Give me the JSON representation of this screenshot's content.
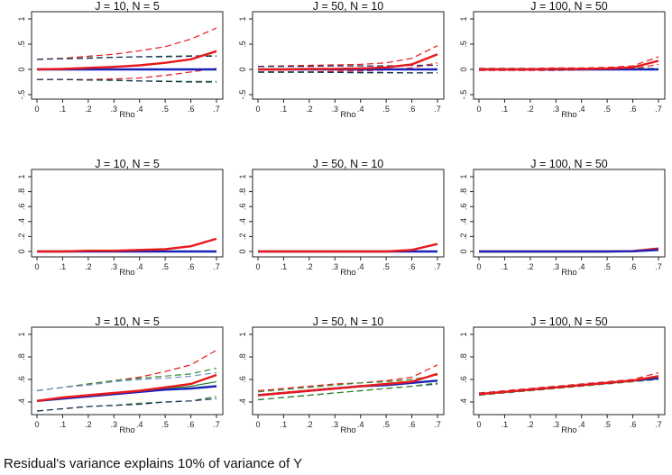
{
  "caption": "Residual's variance explains 10% of variance of Y",
  "colors": {
    "red": "#e8191b",
    "blue": "#1a23b8",
    "green": "#2e8b2e",
    "navy": "#1c2a5a",
    "lightblue": "#6f8fc8",
    "frame": "#222222"
  },
  "chart_data": {
    "type": "line",
    "x": [
      0,
      0.1,
      0.2,
      0.3,
      0.4,
      0.5,
      0.6,
      0.7
    ],
    "xticks": [
      "0",
      ".1",
      ".2",
      ".3",
      ".4",
      ".5",
      ".6",
      ".7"
    ],
    "xlabel": "Rho",
    "rows": [
      {
        "ylim": [
          -0.6,
          1.1
        ],
        "yticks": [
          {
            "v": 1,
            "t": "1"
          },
          {
            "v": 0.5,
            "t": ".5"
          },
          {
            "v": 0,
            "t": "0"
          },
          {
            "v": -0.5,
            "t": "-.5"
          }
        ]
      },
      {
        "ylim": [
          -0.05,
          1.05
        ],
        "yticks": [
          {
            "v": 1,
            "t": "1"
          },
          {
            "v": 0.8,
            "t": ".8"
          },
          {
            "v": 0.6,
            "t": ".6"
          },
          {
            "v": 0.4,
            "t": ".4"
          },
          {
            "v": 0.2,
            "t": ".2"
          },
          {
            "v": 0,
            "t": "0"
          }
        ]
      },
      {
        "ylim": [
          0.28,
          1.05
        ],
        "yticks": [
          {
            "v": 1,
            "t": "1"
          },
          {
            "v": 0.8,
            "t": ".8"
          },
          {
            "v": 0.6,
            "t": ".6"
          },
          {
            "v": 0.4,
            "t": ".4"
          }
        ]
      }
    ],
    "panels": [
      {
        "title": "J = 10, N = 5",
        "row": 0,
        "col": 0,
        "series": [
          {
            "name": "red-upper",
            "color": "red",
            "dash": true,
            "values": [
              0.2,
              0.22,
              0.26,
              0.3,
              0.37,
              0.45,
              0.6,
              0.82
            ]
          },
          {
            "name": "red-lower",
            "color": "red",
            "dash": true,
            "values": [
              -0.2,
              -0.2,
              -0.2,
              -0.19,
              -0.17,
              -0.12,
              -0.05,
              0.02
            ]
          },
          {
            "name": "green-upper",
            "color": "green",
            "dash": true,
            "values": [
              0.2,
              0.21,
              0.23,
              0.24,
              0.25,
              0.26,
              0.27,
              0.27
            ]
          },
          {
            "name": "navy-upper",
            "color": "navy",
            "dash": true,
            "values": [
              0.2,
              0.21,
              0.22,
              0.24,
              0.25,
              0.25,
              0.26,
              0.26
            ]
          },
          {
            "name": "green-lower",
            "color": "green",
            "dash": true,
            "values": [
              -0.2,
              -0.2,
              -0.21,
              -0.22,
              -0.23,
              -0.23,
              -0.24,
              -0.24
            ]
          },
          {
            "name": "navy-lower",
            "color": "navy",
            "dash": true,
            "values": [
              -0.2,
              -0.2,
              -0.21,
              -0.21,
              -0.23,
              -0.24,
              -0.25,
              -0.25
            ]
          },
          {
            "name": "blue-mean",
            "color": "blue",
            "dash": false,
            "values": [
              0,
              0,
              0,
              0,
              0,
              0,
              0,
              0
            ]
          },
          {
            "name": "red-mean",
            "color": "red",
            "dash": false,
            "values": [
              0,
              0.01,
              0.03,
              0.05,
              0.08,
              0.13,
              0.2,
              0.36
            ]
          }
        ]
      },
      {
        "title": "J = 50, N = 10",
        "row": 0,
        "col": 1,
        "series": [
          {
            "name": "red-upper",
            "color": "red",
            "dash": true,
            "values": [
              0.06,
              0.07,
              0.08,
              0.09,
              0.1,
              0.13,
              0.22,
              0.47
            ]
          },
          {
            "name": "red-lower",
            "color": "red",
            "dash": true,
            "values": [
              -0.05,
              -0.05,
              -0.05,
              -0.04,
              -0.03,
              -0.01,
              0.03,
              0.13
            ]
          },
          {
            "name": "navy-upper",
            "color": "navy",
            "dash": true,
            "values": [
              0.06,
              0.06,
              0.06,
              0.07,
              0.07,
              0.07,
              0.08,
              0.08
            ]
          },
          {
            "name": "green-lower",
            "color": "green",
            "dash": true,
            "values": [
              -0.06,
              -0.06,
              -0.06,
              -0.06,
              -0.07,
              -0.07,
              -0.07,
              -0.07
            ]
          },
          {
            "name": "navy-lower",
            "color": "navy",
            "dash": true,
            "values": [
              -0.05,
              -0.05,
              -0.05,
              -0.06,
              -0.06,
              -0.06,
              -0.07,
              -0.07
            ]
          },
          {
            "name": "blue-mean",
            "color": "blue",
            "dash": false,
            "values": [
              0,
              0,
              0,
              0,
              0,
              0,
              0,
              0
            ]
          },
          {
            "name": "red-mean",
            "color": "red",
            "dash": false,
            "values": [
              0,
              0,
              0.01,
              0.01,
              0.02,
              0.04,
              0.1,
              0.3
            ]
          }
        ]
      },
      {
        "title": "J = 100, N = 50",
        "row": 0,
        "col": 2,
        "series": [
          {
            "name": "red-upper",
            "color": "red",
            "dash": true,
            "values": [
              0.02,
              0.02,
              0.02,
              0.03,
              0.03,
              0.04,
              0.07,
              0.25
            ]
          },
          {
            "name": "red-lower",
            "color": "red",
            "dash": true,
            "values": [
              -0.02,
              -0.02,
              -0.02,
              -0.02,
              -0.01,
              0,
              0.01,
              0.1
            ]
          },
          {
            "name": "green-mean",
            "color": "green",
            "dash": true,
            "values": [
              0.01,
              0.01,
              0.01,
              0.01,
              0.01,
              0.02,
              0.02,
              0.02
            ]
          },
          {
            "name": "blue-mean",
            "color": "blue",
            "dash": false,
            "values": [
              0,
              0,
              0,
              0,
              0,
              0,
              0,
              0
            ]
          },
          {
            "name": "red-mean",
            "color": "red",
            "dash": false,
            "values": [
              0,
              0,
              0,
              0.01,
              0.01,
              0.02,
              0.04,
              0.17
            ]
          }
        ]
      },
      {
        "title": "J = 10, N = 5",
        "row": 1,
        "col": 0,
        "series": [
          {
            "name": "blue-mean",
            "color": "blue",
            "dash": false,
            "values": [
              0,
              0,
              0,
              0,
              0,
              0,
              0,
              0
            ]
          },
          {
            "name": "red-mean",
            "color": "red",
            "dash": false,
            "values": [
              0,
              0,
              0.01,
              0.01,
              0.02,
              0.03,
              0.07,
              0.17
            ]
          }
        ]
      },
      {
        "title": "J = 50, N = 10",
        "row": 1,
        "col": 1,
        "series": [
          {
            "name": "blue-mean",
            "color": "blue",
            "dash": false,
            "values": [
              0,
              0,
              0,
              0,
              0,
              0,
              0,
              0
            ]
          },
          {
            "name": "red-mean",
            "color": "red",
            "dash": false,
            "values": [
              0,
              0,
              0,
              0,
              0,
              0,
              0.02,
              0.1
            ]
          }
        ]
      },
      {
        "title": "J = 100, N = 50",
        "row": 1,
        "col": 2,
        "series": [
          {
            "name": "red-mean",
            "color": "red",
            "dash": false,
            "values": [
              0,
              0,
              0,
              0,
              0,
              0,
              0.005,
              0.04
            ]
          },
          {
            "name": "blue-mean",
            "color": "blue",
            "dash": false,
            "values": [
              0,
              0,
              0,
              0,
              0,
              0,
              0.003,
              0.02
            ]
          }
        ]
      },
      {
        "title": "J = 10, N = 5",
        "row": 2,
        "col": 0,
        "series": [
          {
            "name": "red-upper",
            "color": "red",
            "dash": true,
            "values": [
              0.5,
              0.53,
              0.56,
              0.59,
              0.62,
              0.67,
              0.73,
              0.86
            ]
          },
          {
            "name": "green-upper",
            "color": "green",
            "dash": true,
            "values": [
              0.5,
              0.53,
              0.56,
              0.59,
              0.61,
              0.63,
              0.65,
              0.7
            ]
          },
          {
            "name": "blue-upper",
            "color": "lightblue",
            "dash": true,
            "values": [
              0.5,
              0.53,
              0.55,
              0.58,
              0.6,
              0.61,
              0.63,
              0.66
            ]
          },
          {
            "name": "green-lower",
            "color": "green",
            "dash": true,
            "values": [
              0.32,
              0.34,
              0.36,
              0.37,
              0.39,
              0.4,
              0.41,
              0.45
            ]
          },
          {
            "name": "navy-lower",
            "color": "navy",
            "dash": true,
            "values": [
              0.32,
              0.34,
              0.36,
              0.37,
              0.38,
              0.4,
              0.41,
              0.43
            ]
          },
          {
            "name": "green-mean",
            "color": "green",
            "dash": false,
            "values": [
              0.41,
              0.43,
              0.45,
              0.47,
              0.49,
              0.52,
              0.54,
              0.58
            ]
          },
          {
            "name": "blue-mean",
            "color": "blue",
            "dash": false,
            "values": [
              0.41,
              0.43,
              0.45,
              0.47,
              0.49,
              0.51,
              0.52,
              0.54
            ]
          },
          {
            "name": "red-mean",
            "color": "red",
            "dash": false,
            "values": [
              0.41,
              0.44,
              0.46,
              0.48,
              0.5,
              0.53,
              0.56,
              0.64
            ]
          }
        ]
      },
      {
        "title": "J = 50, N = 10",
        "row": 2,
        "col": 1,
        "series": [
          {
            "name": "red-upper",
            "color": "red",
            "dash": true,
            "values": [
              0.5,
              0.52,
              0.54,
              0.56,
              0.57,
              0.59,
              0.62,
              0.73
            ]
          },
          {
            "name": "green-upper",
            "color": "green",
            "dash": true,
            "values": [
              0.49,
              0.51,
              0.53,
              0.55,
              0.57,
              0.58,
              0.6,
              0.64
            ]
          },
          {
            "name": "navy-lower",
            "color": "navy",
            "dash": true,
            "values": [
              0.42,
              0.44,
              0.46,
              0.48,
              0.5,
              0.52,
              0.54,
              0.56
            ]
          },
          {
            "name": "green-lower",
            "color": "green",
            "dash": true,
            "values": [
              0.42,
              0.44,
              0.46,
              0.48,
              0.5,
              0.52,
              0.54,
              0.57
            ]
          },
          {
            "name": "blue-mean",
            "color": "blue",
            "dash": false,
            "values": [
              0.46,
              0.48,
              0.5,
              0.52,
              0.54,
              0.55,
              0.57,
              0.59
            ]
          },
          {
            "name": "red-mean",
            "color": "red",
            "dash": false,
            "values": [
              0.46,
              0.48,
              0.5,
              0.52,
              0.54,
              0.56,
              0.58,
              0.65
            ]
          }
        ]
      },
      {
        "title": "J = 100, N = 50",
        "row": 2,
        "col": 2,
        "series": [
          {
            "name": "red-upper",
            "color": "red",
            "dash": true,
            "values": [
              0.48,
              0.5,
              0.52,
              0.54,
              0.56,
              0.58,
              0.6,
              0.66
            ]
          },
          {
            "name": "green-lower",
            "color": "green",
            "dash": true,
            "values": [
              0.46,
              0.48,
              0.5,
              0.52,
              0.54,
              0.56,
              0.58,
              0.6
            ]
          },
          {
            "name": "blue-mean",
            "color": "blue",
            "dash": false,
            "values": [
              0.47,
              0.49,
              0.51,
              0.53,
              0.55,
              0.57,
              0.59,
              0.61
            ]
          },
          {
            "name": "red-mean",
            "color": "red",
            "dash": false,
            "values": [
              0.47,
              0.49,
              0.51,
              0.53,
              0.55,
              0.57,
              0.59,
              0.63
            ]
          }
        ]
      }
    ]
  }
}
